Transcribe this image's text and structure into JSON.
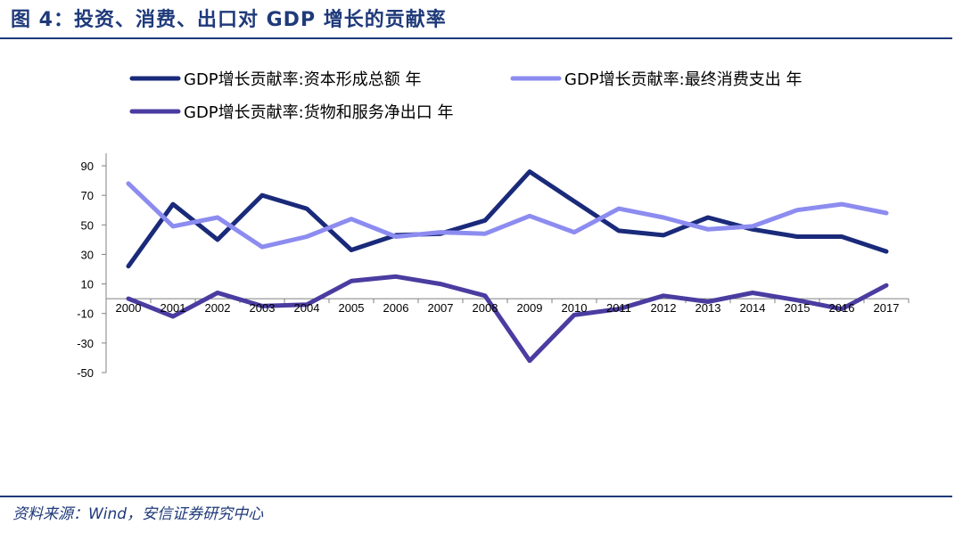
{
  "figure": {
    "title": "图 4：投资、消费、出口对 GDP 增长的贡献率",
    "source": "资料来源：Wind，安信证券研究中心"
  },
  "colors": {
    "series_capital": "#1A2A7A",
    "series_consumption": "#8C8CF0",
    "series_netexport": "#4A3CA0",
    "rule": "#1F3A7A"
  },
  "chart_data": {
    "type": "line",
    "x": [
      "2000",
      "2001",
      "2002",
      "2003",
      "2004",
      "2005",
      "2006",
      "2007",
      "2008",
      "2009",
      "2010",
      "2011",
      "2012",
      "2013",
      "2014",
      "2015",
      "2016",
      "2017"
    ],
    "series": [
      {
        "name": "GDP增长贡献率:资本形成总额 年",
        "values": [
          22,
          64,
          40,
          70,
          61,
          33,
          43,
          44,
          53,
          86,
          66,
          46,
          43,
          55,
          47,
          42,
          42,
          32
        ]
      },
      {
        "name": "GDP增长贡献率:最终消费支出 年",
        "values": [
          78,
          49,
          55,
          35,
          42,
          54,
          42,
          45,
          44,
          56,
          45,
          61,
          55,
          47,
          49,
          60,
          64,
          58
        ]
      },
      {
        "name": "GDP增长贡献率:货物和服务净出口 年",
        "values": [
          0,
          -12,
          4,
          -5,
          -4,
          12,
          15,
          10,
          2,
          -42,
          -11,
          -7,
          2,
          -2,
          4,
          -1,
          -7,
          9
        ]
      }
    ],
    "yticks": [
      "90",
      "70",
      "50",
      "30",
      "10",
      "-10",
      "-30",
      "-50"
    ],
    "ylim": [
      -50,
      90
    ],
    "grid": false,
    "legend_position": "top"
  }
}
